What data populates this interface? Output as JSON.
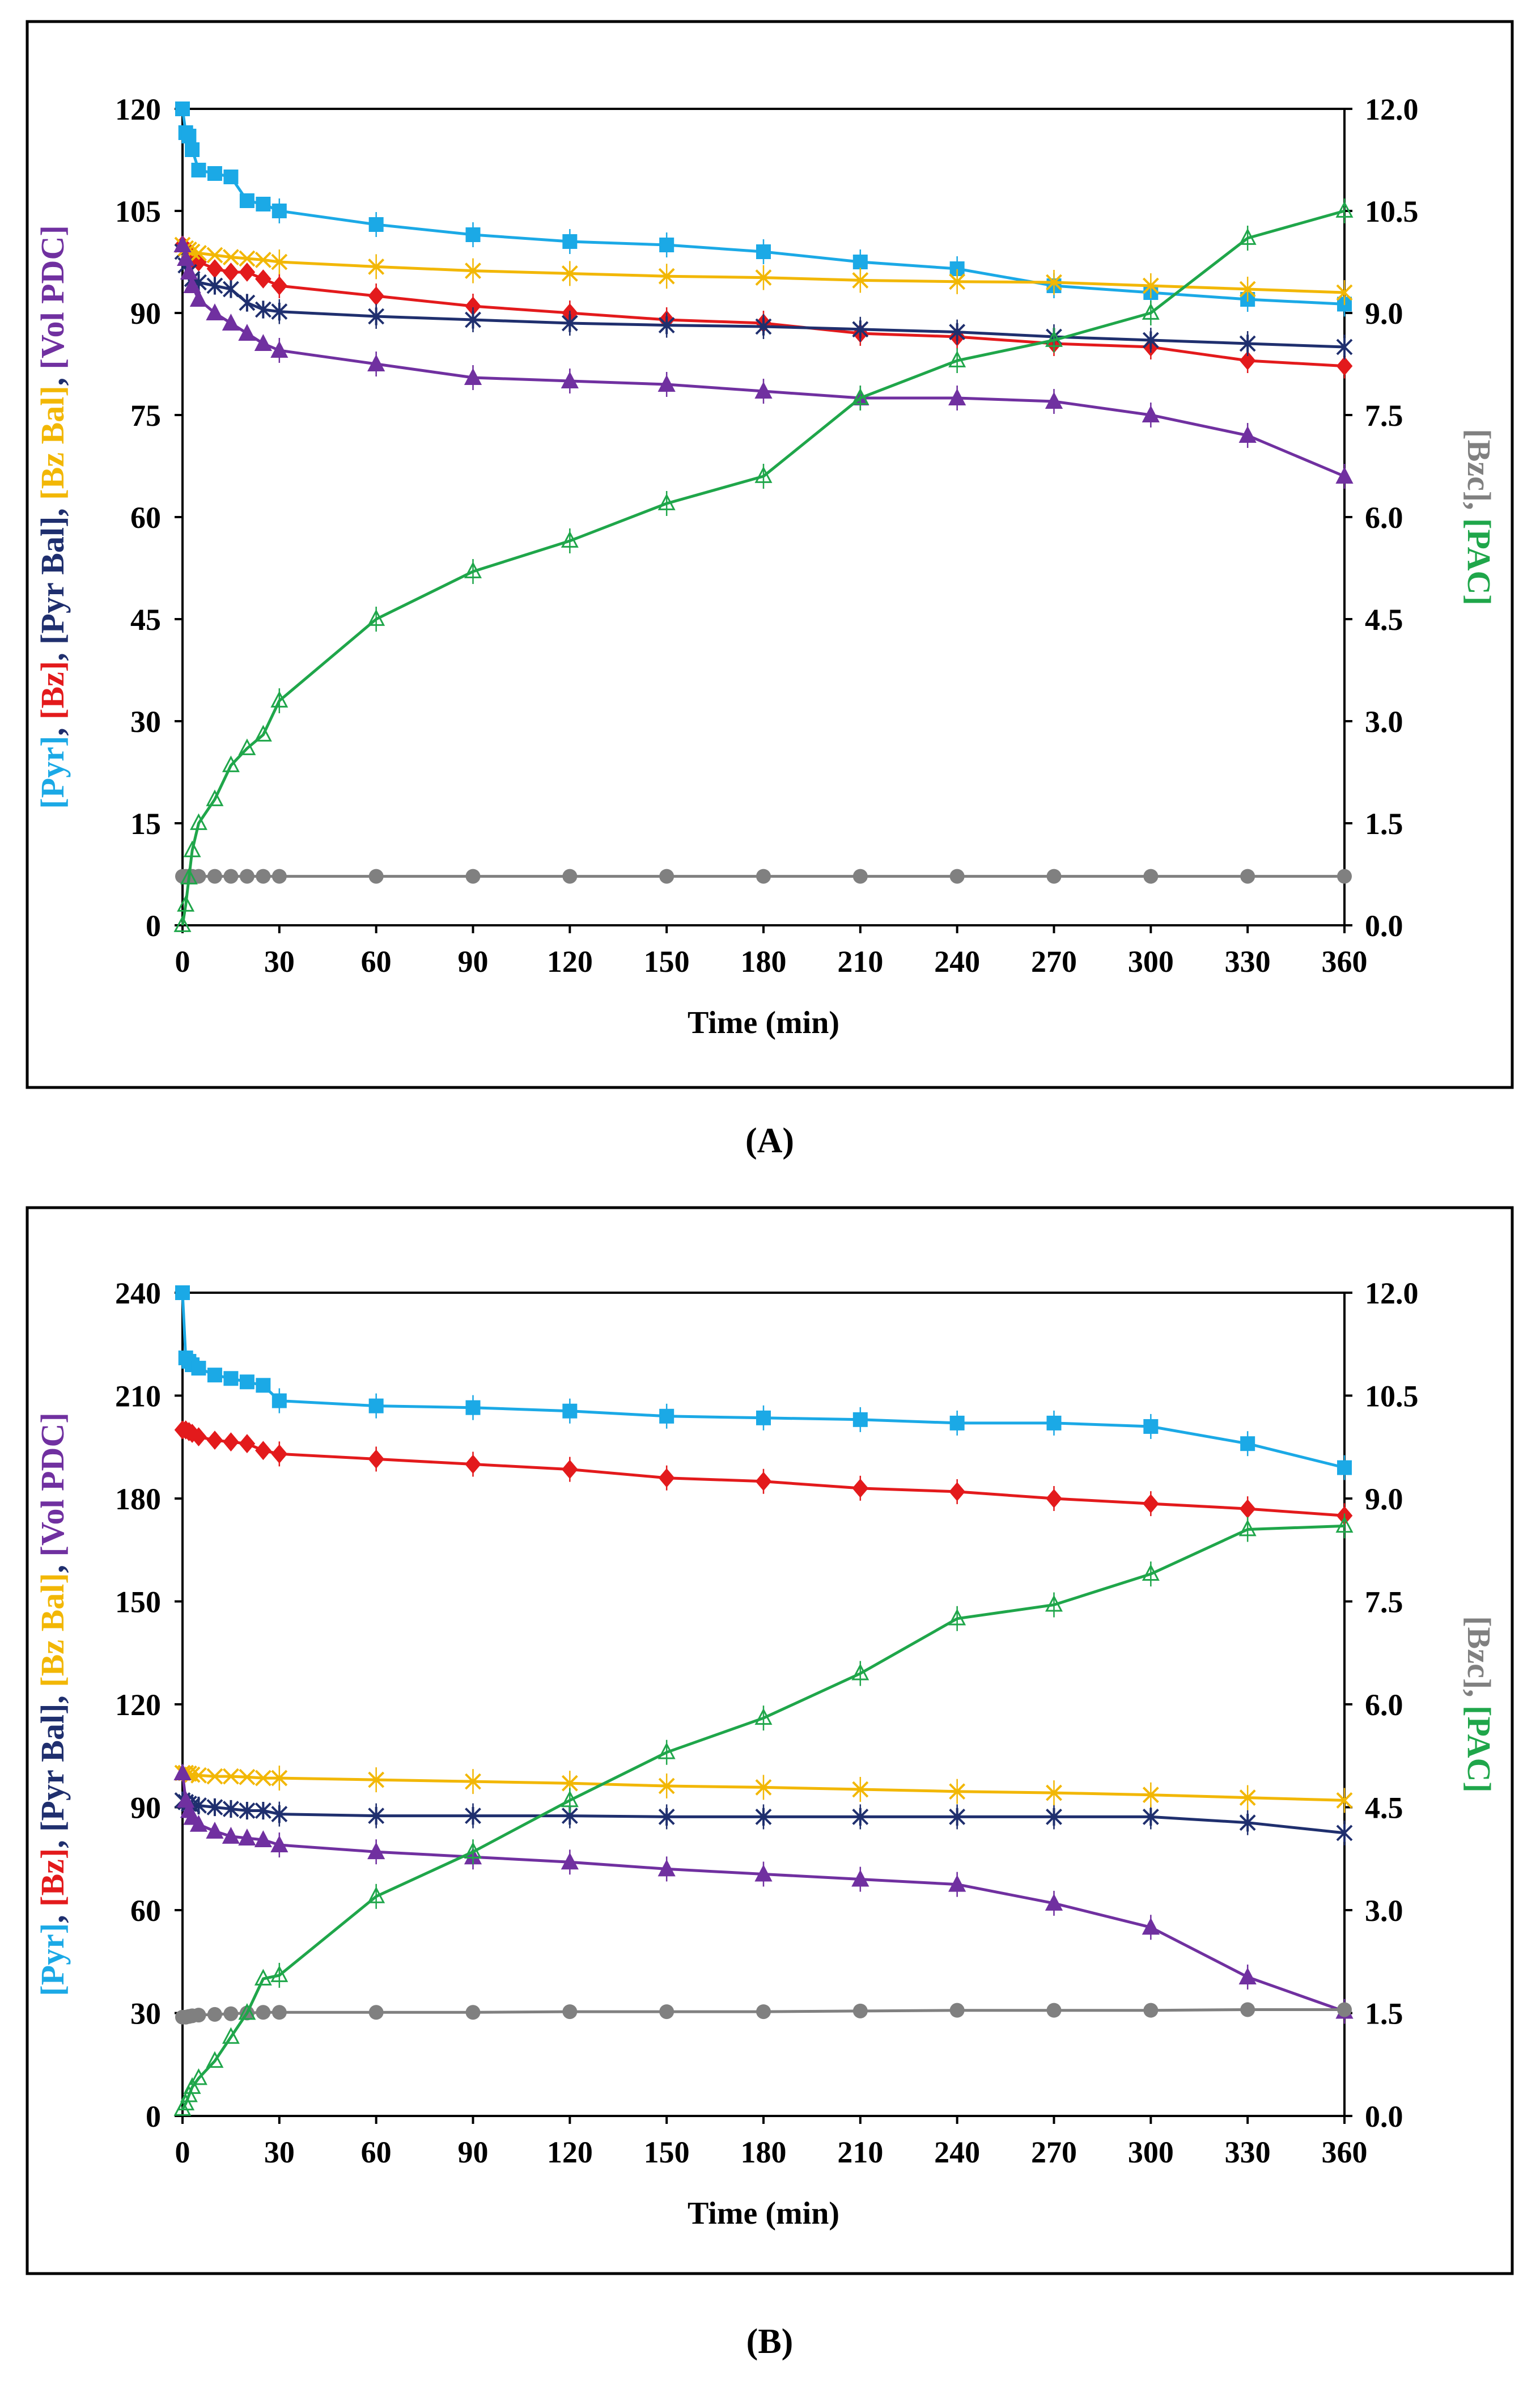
{
  "chart_data": [
    {
      "type": "line",
      "panel_label": "(A)",
      "xlabel": "Time (min)",
      "xticks": [
        0,
        30,
        60,
        90,
        120,
        150,
        180,
        210,
        240,
        270,
        300,
        330,
        360
      ],
      "xlim": [
        0,
        360
      ],
      "ylim_left": [
        0,
        120
      ],
      "yticks_left": [
        0,
        15,
        30,
        45,
        60,
        75,
        90,
        105,
        120
      ],
      "ylim_right": [
        0,
        12
      ],
      "yticks_right": [
        "0.0",
        "1.5",
        "3.0",
        "4.5",
        "6.0",
        "7.5",
        "9.0",
        "10.5",
        "12.0"
      ],
      "ylabel_left": [
        {
          "text": "[Pyr]",
          "color": "#1ba9e6"
        },
        {
          "text": ", ",
          "color": "#1f2f6e"
        },
        {
          "text": "[Bz]",
          "color": "#e31a1c"
        },
        {
          "text": ", ",
          "color": "#1f2f6e"
        },
        {
          "text": "[Pyr Bal]",
          "color": "#1f2f6e"
        },
        {
          "text": ", ",
          "color": "#1f2f6e"
        },
        {
          "text": "[Bz Bal]",
          "color": "#f2b705"
        },
        {
          "text": ", ",
          "color": "#1f2f6e"
        },
        {
          "text": "[Vol PDC]",
          "color": "#7030a0"
        }
      ],
      "ylabel_right": [
        {
          "text": "[Bzc]",
          "color": "#808080"
        },
        {
          "text": ", ",
          "color": "#808080"
        },
        {
          "text": "[PAC]",
          "color": "#1fa64a"
        }
      ],
      "series": [
        {
          "name": "[Pyr]",
          "axis": "left",
          "color": "#1ba9e6",
          "marker": "square",
          "x": [
            0,
            1,
            2,
            3,
            5,
            10,
            15,
            20,
            25,
            30,
            60,
            90,
            120,
            150,
            180,
            210,
            240,
            270,
            300,
            330,
            360
          ],
          "y": [
            120,
            116.5,
            116,
            114,
            111,
            110.5,
            110,
            106.5,
            106,
            105,
            103,
            101.5,
            100.5,
            100,
            99,
            97.5,
            96.5,
            94,
            93,
            92,
            91.3
          ]
        },
        {
          "name": "[Bz]",
          "axis": "left",
          "color": "#e31a1c",
          "marker": "diamond",
          "x": [
            0,
            1,
            2,
            3,
            5,
            10,
            15,
            20,
            25,
            30,
            60,
            90,
            120,
            150,
            180,
            210,
            240,
            270,
            300,
            330,
            360
          ],
          "y": [
            100,
            99.5,
            99,
            98,
            97.5,
            96.5,
            96,
            96,
            95,
            94,
            92.5,
            91,
            90,
            89,
            88.5,
            87,
            86.5,
            85.5,
            85,
            83,
            82.2
          ]
        },
        {
          "name": "[Pyr Bal]",
          "axis": "left",
          "color": "#1f2f6e",
          "marker": "star",
          "x": [
            0,
            1,
            2,
            3,
            5,
            10,
            15,
            20,
            25,
            30,
            60,
            90,
            120,
            150,
            180,
            210,
            240,
            270,
            300,
            330,
            360
          ],
          "y": [
            99,
            97,
            96,
            95,
            94.5,
            94,
            93.5,
            91.5,
            90.5,
            90.2,
            89.5,
            89,
            88.5,
            88.2,
            88,
            87.6,
            87.2,
            86.5,
            86,
            85.5,
            85
          ]
        },
        {
          "name": "[Bz Bal]",
          "axis": "left",
          "color": "#f2b705",
          "marker": "x",
          "x": [
            0,
            1,
            2,
            3,
            5,
            10,
            15,
            20,
            25,
            30,
            60,
            90,
            120,
            150,
            180,
            210,
            240,
            270,
            300,
            330,
            360
          ],
          "y": [
            100,
            99.5,
            99.3,
            99,
            98.8,
            98.5,
            98.2,
            98,
            97.8,
            97.5,
            96.8,
            96.2,
            95.8,
            95.4,
            95.2,
            94.8,
            94.6,
            94.5,
            94,
            93.5,
            93
          ]
        },
        {
          "name": "[Vol PDC]",
          "axis": "left",
          "color": "#7030a0",
          "marker": "triangle",
          "x": [
            0,
            1,
            2,
            3,
            5,
            10,
            15,
            20,
            25,
            30,
            60,
            90,
            120,
            150,
            180,
            210,
            240,
            270,
            300,
            330,
            360
          ],
          "y": [
            100,
            98,
            96,
            94,
            92,
            90,
            88.5,
            87,
            85.5,
            84.5,
            82.5,
            80.5,
            80,
            79.5,
            78.5,
            77.5,
            77.5,
            77,
            75,
            72,
            66
          ]
        },
        {
          "name": "[Bzc]",
          "axis": "right",
          "color": "#808080",
          "marker": "circle",
          "x": [
            0,
            1,
            2,
            3,
            5,
            10,
            15,
            20,
            25,
            30,
            60,
            90,
            120,
            150,
            180,
            210,
            240,
            270,
            300,
            330,
            360
          ],
          "y": [
            0.72,
            0.72,
            0.72,
            0.72,
            0.72,
            0.72,
            0.72,
            0.72,
            0.72,
            0.72,
            0.72,
            0.72,
            0.72,
            0.72,
            0.72,
            0.72,
            0.72,
            0.72,
            0.72,
            0.72,
            0.72
          ]
        },
        {
          "name": "[PAC]",
          "axis": "right",
          "color": "#1fa64a",
          "marker": "open-triangle",
          "x": [
            0,
            1,
            2,
            3,
            5,
            10,
            15,
            20,
            25,
            30,
            60,
            90,
            120,
            150,
            180,
            210,
            240,
            270,
            300,
            330,
            360
          ],
          "y": [
            0,
            0.3,
            0.7,
            1.1,
            1.5,
            1.85,
            2.35,
            2.6,
            2.8,
            3.3,
            4.5,
            5.2,
            5.65,
            6.2,
            6.6,
            7.75,
            8.3,
            8.6,
            9.0,
            10.1,
            10.5
          ]
        }
      ]
    },
    {
      "type": "line",
      "panel_label": "(B)",
      "xlabel": "Time (min)",
      "xticks": [
        0,
        30,
        60,
        90,
        120,
        150,
        180,
        210,
        240,
        270,
        300,
        330,
        360
      ],
      "xlim": [
        0,
        360
      ],
      "ylim_left": [
        0,
        240
      ],
      "yticks_left": [
        0,
        30,
        60,
        90,
        120,
        150,
        180,
        210,
        240
      ],
      "ylim_right": [
        0,
        12
      ],
      "yticks_right": [
        "0.0",
        "1.5",
        "3.0",
        "4.5",
        "6.0",
        "7.5",
        "9.0",
        "10.5",
        "12.0"
      ],
      "ylabel_left": [
        {
          "text": "[Pyr]",
          "color": "#1ba9e6"
        },
        {
          "text": ", ",
          "color": "#1f2f6e"
        },
        {
          "text": "[Bz]",
          "color": "#e31a1c"
        },
        {
          "text": ", ",
          "color": "#1f2f6e"
        },
        {
          "text": "[Pyr Bal]",
          "color": "#1f2f6e"
        },
        {
          "text": ", ",
          "color": "#1f2f6e"
        },
        {
          "text": "[Bz Bal]",
          "color": "#f2b705"
        },
        {
          "text": ", ",
          "color": "#1f2f6e"
        },
        {
          "text": "[Vol PDC]",
          "color": "#7030a0"
        }
      ],
      "ylabel_right": [
        {
          "text": "[Bzc]",
          "color": "#808080"
        },
        {
          "text": ", ",
          "color": "#808080"
        },
        {
          "text": "[PAC]",
          "color": "#1fa64a"
        }
      ],
      "series": [
        {
          "name": "[Pyr]",
          "axis": "left",
          "color": "#1ba9e6",
          "marker": "square",
          "x": [
            0,
            1,
            2,
            3,
            5,
            10,
            15,
            20,
            25,
            30,
            60,
            90,
            120,
            150,
            180,
            210,
            240,
            270,
            300,
            330,
            360
          ],
          "y": [
            240,
            221,
            220,
            219,
            218,
            216,
            215,
            214,
            213,
            208.5,
            207,
            206.5,
            205.5,
            204,
            203.5,
            203,
            202,
            202,
            201,
            196,
            189
          ]
        },
        {
          "name": "[Bz]",
          "axis": "left",
          "color": "#e31a1c",
          "marker": "diamond",
          "x": [
            0,
            1,
            2,
            3,
            5,
            10,
            15,
            20,
            25,
            30,
            60,
            90,
            120,
            150,
            180,
            210,
            240,
            270,
            300,
            330,
            360
          ],
          "y": [
            200,
            200,
            199.5,
            199,
            198,
            197,
            196.5,
            196,
            194,
            193,
            191.5,
            190,
            188.5,
            186,
            185,
            183,
            182,
            180,
            178.5,
            177,
            175
          ]
        },
        {
          "name": "[Pyr Bal]",
          "axis": "left",
          "color": "#1f2f6e",
          "marker": "star",
          "x": [
            0,
            1,
            2,
            3,
            5,
            10,
            15,
            20,
            25,
            30,
            60,
            90,
            120,
            150,
            180,
            210,
            240,
            270,
            300,
            330,
            360
          ],
          "y": [
            92,
            91.5,
            91,
            90.5,
            90.5,
            90,
            89.5,
            89,
            89,
            88,
            87.5,
            87.5,
            87.5,
            87.2,
            87.2,
            87.2,
            87.2,
            87.2,
            87.2,
            85.5,
            82.5
          ]
        },
        {
          "name": "[Bz Bal]",
          "axis": "left",
          "color": "#f2b705",
          "marker": "x",
          "x": [
            0,
            1,
            2,
            3,
            5,
            10,
            15,
            20,
            25,
            30,
            60,
            90,
            120,
            150,
            180,
            210,
            240,
            270,
            300,
            330,
            360
          ],
          "y": [
            100,
            100,
            99.8,
            99.5,
            99.3,
            99,
            99,
            98.8,
            98.5,
            98.5,
            98,
            97.5,
            97,
            96.2,
            95.8,
            95.2,
            94.6,
            94.2,
            93.6,
            92.8,
            92
          ]
        },
        {
          "name": "[Vol PDC]",
          "axis": "left",
          "color": "#7030a0",
          "marker": "triangle",
          "x": [
            0,
            1,
            2,
            3,
            5,
            10,
            15,
            20,
            25,
            30,
            60,
            90,
            120,
            150,
            180,
            210,
            240,
            270,
            300,
            330,
            360
          ],
          "y": [
            100,
            92,
            89,
            87,
            85,
            83,
            81.5,
            81,
            80.5,
            79,
            77,
            75.5,
            74,
            72,
            70.5,
            69,
            67.5,
            62,
            55,
            40.5,
            30.5
          ]
        },
        {
          "name": "[Bzc]",
          "axis": "right",
          "color": "#808080",
          "marker": "circle",
          "x": [
            0,
            1,
            2,
            3,
            5,
            10,
            15,
            20,
            25,
            30,
            60,
            90,
            120,
            150,
            180,
            210,
            240,
            270,
            300,
            330,
            360
          ],
          "y": [
            1.44,
            1.44,
            1.45,
            1.46,
            1.47,
            1.48,
            1.49,
            1.5,
            1.51,
            1.51,
            1.51,
            1.51,
            1.52,
            1.52,
            1.52,
            1.53,
            1.54,
            1.54,
            1.54,
            1.55,
            1.55
          ]
        },
        {
          "name": "[PAC]",
          "axis": "right",
          "color": "#1fa64a",
          "marker": "open-triangle",
          "x": [
            0,
            1,
            2,
            3,
            5,
            10,
            15,
            20,
            25,
            30,
            60,
            90,
            120,
            150,
            180,
            210,
            240,
            270,
            300,
            330,
            360
          ],
          "y": [
            0.1,
            0.18,
            0.3,
            0.42,
            0.55,
            0.8,
            1.15,
            1.5,
            2.0,
            2.05,
            3.2,
            3.85,
            4.6,
            5.3,
            5.8,
            6.45,
            7.25,
            7.45,
            7.9,
            8.55,
            8.6
          ]
        }
      ]
    }
  ]
}
